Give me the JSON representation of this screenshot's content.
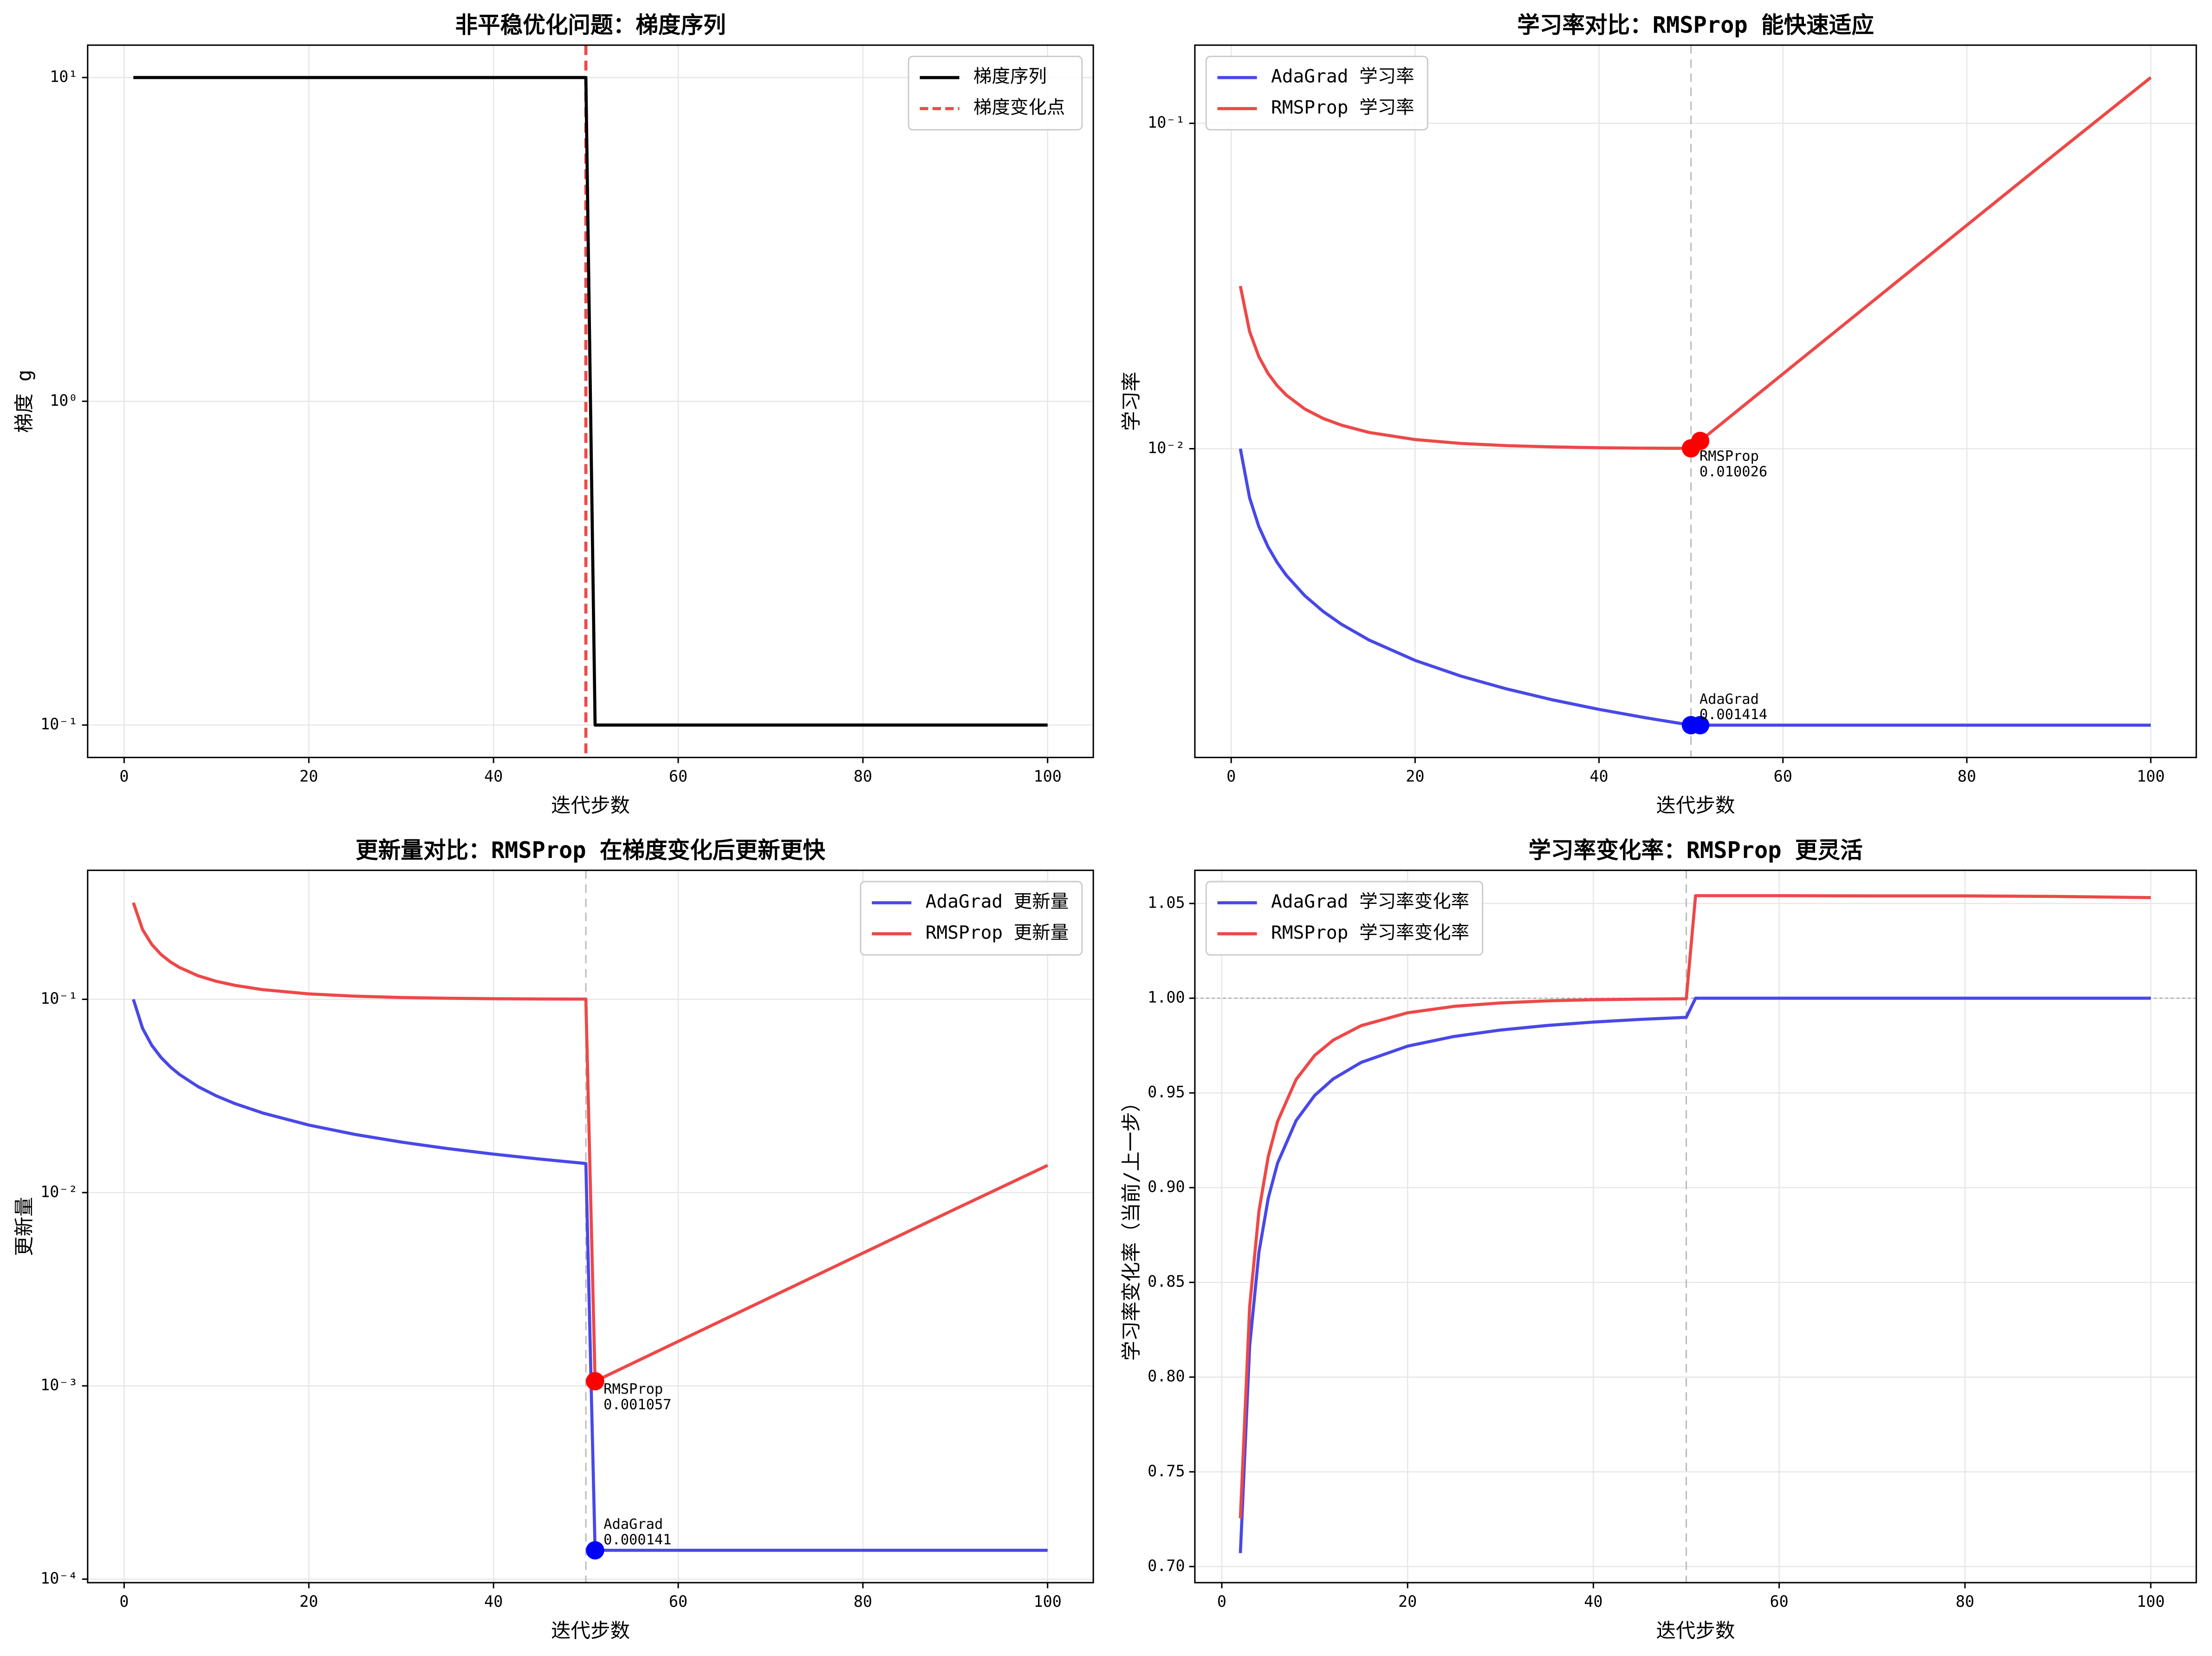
{
  "chart_data": [
    {
      "type": "line",
      "title": "非平稳优化问题：梯度序列",
      "xlabel": "迭代步数",
      "ylabel": "梯度 g",
      "yscale": "log",
      "grid": true,
      "legend": "upper right",
      "x": [
        1,
        50,
        51,
        100
      ],
      "series": [
        {
          "name": "梯度序列",
          "color": "#000000",
          "values": [
            10,
            10,
            0.1,
            0.1
          ]
        }
      ],
      "vline": {
        "x": 50,
        "name": "梯度变化点",
        "color": "#f04848",
        "style": "dashed"
      },
      "xlim": [
        -3.95,
        104.95
      ],
      "xticks": [
        0,
        20,
        40,
        60,
        80,
        100
      ],
      "ylim": [
        0.0794,
        12.59
      ],
      "yticks": [
        {
          "value": 0.1,
          "label": "10⁻¹"
        },
        {
          "value": 1,
          "label": "10⁰"
        },
        {
          "value": 10,
          "label": "10¹"
        }
      ]
    },
    {
      "type": "line",
      "title": "学习率对比：RMSProp 能快速适应",
      "xlabel": "迭代步数",
      "ylabel": "学习率",
      "yscale": "log",
      "grid": true,
      "legend": "upper left",
      "x": [
        1,
        2,
        3,
        4,
        5,
        6,
        8,
        10,
        12,
        15,
        20,
        25,
        30,
        35,
        40,
        45,
        50,
        51,
        52,
        55,
        60,
        70,
        80,
        90,
        100
      ],
      "series": [
        {
          "name": "AdaGrad 学习率",
          "color": "#4848e8",
          "values": [
            0.01,
            0.007071,
            0.005774,
            0.005,
            0.004472,
            0.004082,
            0.003536,
            0.003162,
            0.002887,
            0.002582,
            0.002236,
            0.002,
            0.001826,
            0.00169,
            0.001581,
            0.001491,
            0.001414,
            0.001414,
            0.001414,
            0.001414,
            0.001414,
            0.001414,
            0.001414,
            0.001414,
            0.001414
          ]
        },
        {
          "name": "RMSProp 学习率",
          "color": "#ee4848",
          "values": [
            0.03162,
            0.02294,
            0.01921,
            0.01705,
            0.01563,
            0.01461,
            0.01325,
            0.01239,
            0.01181,
            0.01122,
            0.01067,
            0.01038,
            0.01022,
            0.01013,
            0.01007,
            0.01004,
            0.010026,
            0.010568,
            0.01114,
            0.01305,
            0.01698,
            0.02874,
            0.04864,
            0.08219,
            0.1383
          ]
        }
      ],
      "vline": {
        "x": 50,
        "color": "#bbbbbb",
        "style": "dashed"
      },
      "markers": [
        {
          "x": 50,
          "y": 0.010026,
          "color": "red"
        },
        {
          "x": 51,
          "y": 0.010568,
          "color": "red"
        },
        {
          "x": 50,
          "y": 0.001414,
          "color": "blue"
        },
        {
          "x": 51,
          "y": 0.001414,
          "color": "blue"
        }
      ],
      "annotations": [
        {
          "x": 50,
          "y": 0.010026,
          "label": [
            "RMSProp",
            "0.010026"
          ]
        },
        {
          "x": 50,
          "y": 0.001414,
          "label": [
            "AdaGrad",
            "0.001414"
          ]
        }
      ],
      "xlim": [
        -3.95,
        104.95
      ],
      "xticks": [
        0,
        20,
        40,
        60,
        80,
        100
      ],
      "ylim": [
        0.001125,
        0.1739
      ],
      "yticks": [
        {
          "value": 0.01,
          "label": "10⁻²"
        },
        {
          "value": 0.1,
          "label": "10⁻¹"
        }
      ]
    },
    {
      "type": "line",
      "title": "更新量对比：RMSProp 在梯度变化后更新更快",
      "xlabel": "迭代步数",
      "ylabel": "更新量",
      "yscale": "log",
      "grid": true,
      "legend": "upper right",
      "x": [
        1,
        2,
        3,
        4,
        5,
        6,
        8,
        10,
        12,
        15,
        20,
        25,
        30,
        35,
        40,
        45,
        50,
        51,
        52,
        55,
        60,
        70,
        80,
        90,
        100
      ],
      "series": [
        {
          "name": "AdaGrad 更新量",
          "color": "#4848e8",
          "values": [
            0.1,
            0.07071,
            0.05774,
            0.05,
            0.04472,
            0.04082,
            0.03536,
            0.03162,
            0.02887,
            0.02582,
            0.02236,
            0.02,
            0.01826,
            0.0169,
            0.01581,
            0.01491,
            0.01414,
            0.000141,
            0.000141,
            0.000141,
            0.000141,
            0.000141,
            0.000141,
            0.000141,
            0.000141
          ]
        },
        {
          "name": "RMSProp 更新量",
          "color": "#ee4848",
          "values": [
            0.3162,
            0.2294,
            0.1921,
            0.1705,
            0.1563,
            0.1461,
            0.1325,
            0.1239,
            0.1181,
            0.1122,
            0.1067,
            0.1038,
            0.1022,
            0.1013,
            0.1007,
            0.1004,
            0.10026,
            0.001057,
            0.001114,
            0.001305,
            0.001698,
            0.002874,
            0.004864,
            0.008219,
            0.01383
          ]
        }
      ],
      "vline": {
        "x": 50,
        "color": "#bbbbbb",
        "style": "dashed"
      },
      "markers": [
        {
          "x": 51,
          "y": 0.001057,
          "color": "red"
        },
        {
          "x": 51,
          "y": 0.000141,
          "color": "blue"
        }
      ],
      "annotations": [
        {
          "x": 51,
          "y": 0.001057,
          "label": [
            "RMSProp",
            "0.001057"
          ]
        },
        {
          "x": 51,
          "y": 0.000141,
          "label": [
            "AdaGrad",
            "0.000141"
          ]
        }
      ],
      "xlim": [
        -3.95,
        104.95
      ],
      "xticks": [
        0,
        20,
        40,
        60,
        80,
        100
      ],
      "ylim": [
        9.59e-05,
        0.465
      ],
      "yticks": [
        {
          "value": 0.0001,
          "label": "10⁻⁴"
        },
        {
          "value": 0.001,
          "label": "10⁻³"
        },
        {
          "value": 0.01,
          "label": "10⁻²"
        },
        {
          "value": 0.1,
          "label": "10⁻¹"
        }
      ]
    },
    {
      "type": "line",
      "title": "学习率变化率：RMSProp 更灵活",
      "xlabel": "迭代步数",
      "ylabel": "学习率变化率（当前/上一步）",
      "grid": true,
      "legend": "upper left",
      "x": [
        2,
        3,
        4,
        5,
        6,
        8,
        10,
        12,
        15,
        20,
        25,
        30,
        35,
        40,
        45,
        50,
        51,
        52,
        55,
        60,
        70,
        80,
        90,
        100
      ],
      "series": [
        {
          "name": "AdaGrad 学习率变化率",
          "color": "#4848e8",
          "values": [
            0.7071,
            0.8165,
            0.866,
            0.8944,
            0.9129,
            0.9354,
            0.9487,
            0.9574,
            0.9661,
            0.9747,
            0.9798,
            0.9832,
            0.9856,
            0.9874,
            0.9888,
            0.9899,
            1,
            1,
            1,
            1,
            1,
            1,
            1,
            1
          ]
        },
        {
          "name": "RMSProp 学习率变化率",
          "color": "#ee4848",
          "values": [
            0.7255,
            0.8373,
            0.8877,
            0.9164,
            0.9349,
            0.9571,
            0.9698,
            0.9779,
            0.9855,
            0.9923,
            0.9957,
            0.9975,
            0.9986,
            0.9992,
            0.9995,
            0.9997,
            1.0541,
            1.0541,
            1.0541,
            1.0541,
            1.054,
            1.054,
            1.0537,
            1.0531
          ]
        }
      ],
      "vline": {
        "x": 50,
        "color": "#bbbbbb",
        "style": "dashed"
      },
      "hline": {
        "y": 1,
        "color": "#aaaaaa",
        "style": "dotted"
      },
      "xlim": [
        -2.9,
        104.9
      ],
      "xticks": [
        0,
        20,
        40,
        60,
        80,
        100
      ],
      "ylim": [
        0.6915,
        1.0675
      ],
      "yticks": [
        {
          "value": 0.7,
          "label": "0.70"
        },
        0.75,
        {
          "value": 0.8,
          "label": "0.80"
        },
        0.85,
        {
          "value": 0.9,
          "label": "0.90"
        },
        0.95,
        {
          "value": 1,
          "label": "1.00"
        },
        1.05
      ]
    }
  ]
}
